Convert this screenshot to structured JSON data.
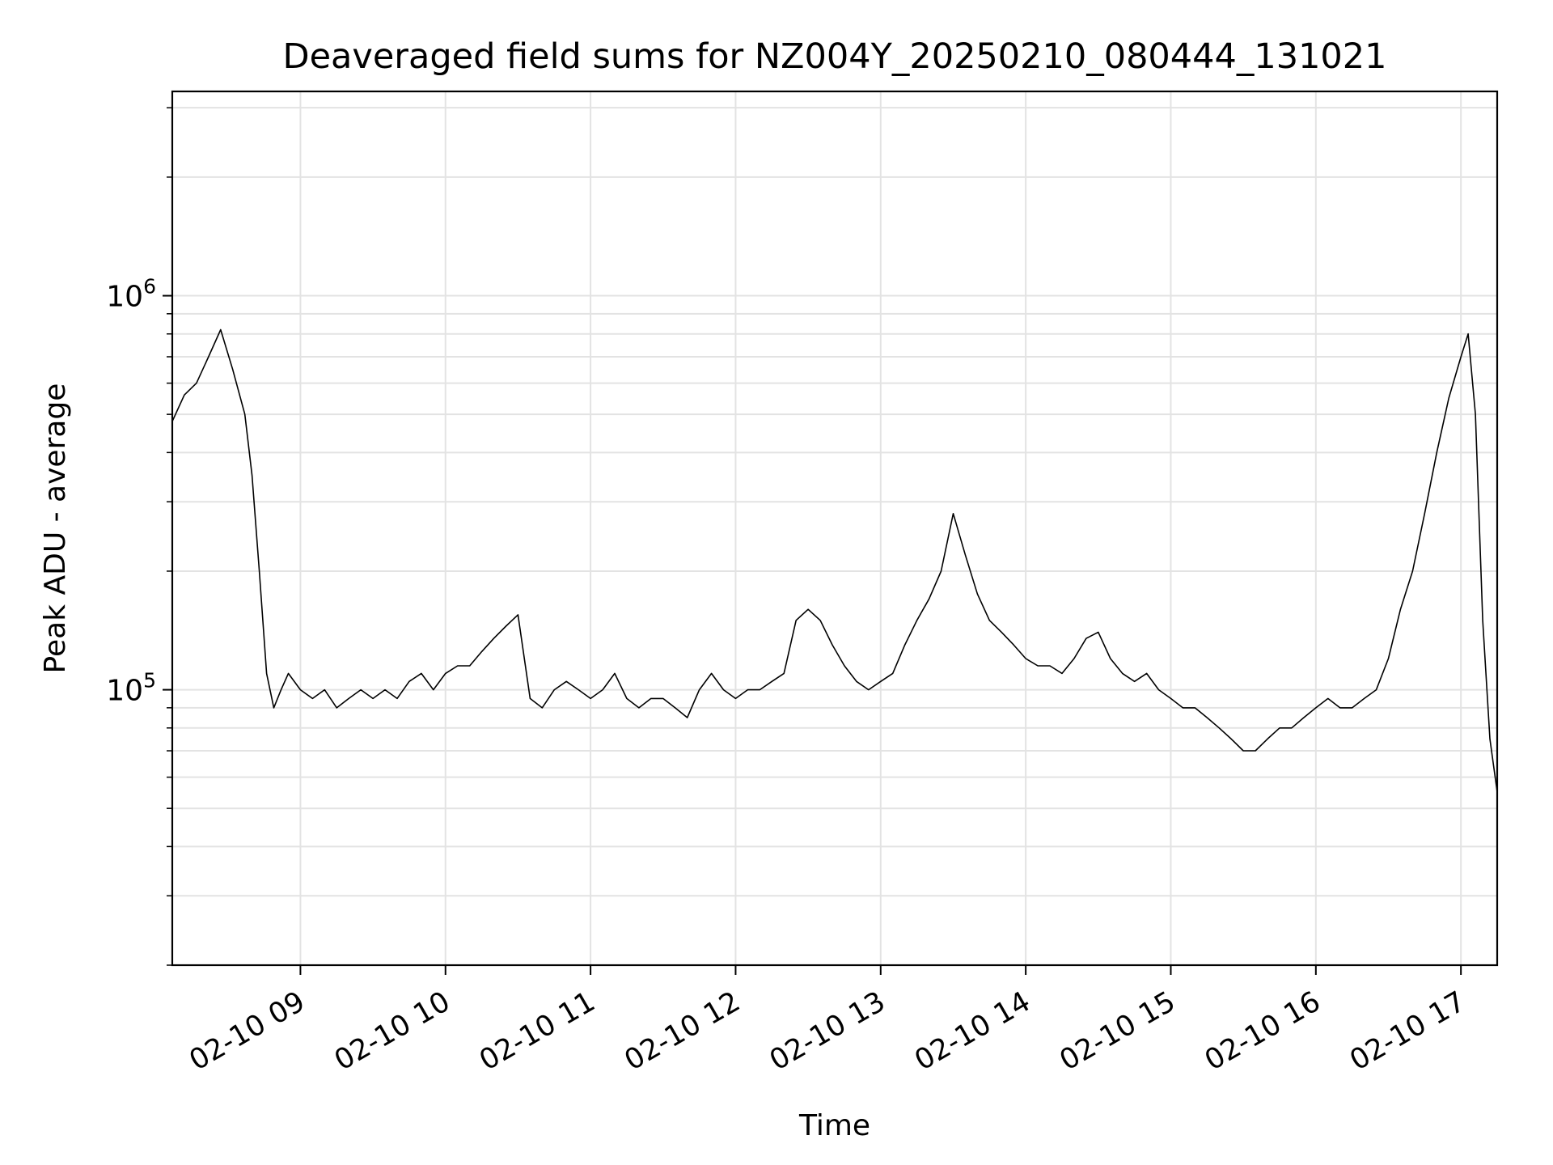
{
  "chart_data": {
    "type": "line",
    "title": "Deaveraged field sums for NZ004Y_20250210_080444_131021",
    "xlabel": "Time",
    "ylabel": "Peak ADU - average",
    "xscale": "time",
    "yscale": "log",
    "xlim": [
      "2025-02-10 08:07",
      "2025-02-10 17:15"
    ],
    "ylim": [
      20000,
      3300000
    ],
    "grid": true,
    "legend": "none",
    "line_color": "#000000",
    "x_ticks": [
      {
        "value": "2025-02-10 09:00",
        "label": "02-10 09"
      },
      {
        "value": "2025-02-10 10:00",
        "label": "02-10 10"
      },
      {
        "value": "2025-02-10 11:00",
        "label": "02-10 11"
      },
      {
        "value": "2025-02-10 12:00",
        "label": "02-10 12"
      },
      {
        "value": "2025-02-10 13:00",
        "label": "02-10 13"
      },
      {
        "value": "2025-02-10 14:00",
        "label": "02-10 14"
      },
      {
        "value": "2025-02-10 15:00",
        "label": "02-10 15"
      },
      {
        "value": "2025-02-10 16:00",
        "label": "02-10 16"
      },
      {
        "value": "2025-02-10 17:00",
        "label": "02-10 17"
      }
    ],
    "y_major_ticks": [
      {
        "value": 100000,
        "base": "10",
        "exp": "5"
      },
      {
        "value": 1000000,
        "base": "10",
        "exp": "6"
      }
    ],
    "series": [
      {
        "x": [
          "2025-02-10 08:07",
          "2025-02-10 08:12",
          "2025-02-10 08:17",
          "2025-02-10 08:22",
          "2025-02-10 08:27",
          "2025-02-10 08:32",
          "2025-02-10 08:37",
          "2025-02-10 08:40",
          "2025-02-10 08:43",
          "2025-02-10 08:46",
          "2025-02-10 08:49",
          "2025-02-10 08:52",
          "2025-02-10 08:55",
          "2025-02-10 09:00",
          "2025-02-10 09:05",
          "2025-02-10 09:10",
          "2025-02-10 09:15",
          "2025-02-10 09:20",
          "2025-02-10 09:25",
          "2025-02-10 09:30",
          "2025-02-10 09:35",
          "2025-02-10 09:40",
          "2025-02-10 09:45",
          "2025-02-10 09:50",
          "2025-02-10 09:55",
          "2025-02-10 10:00",
          "2025-02-10 10:05",
          "2025-02-10 10:10",
          "2025-02-10 10:15",
          "2025-02-10 10:20",
          "2025-02-10 10:25",
          "2025-02-10 10:30",
          "2025-02-10 10:35",
          "2025-02-10 10:40",
          "2025-02-10 10:45",
          "2025-02-10 10:50",
          "2025-02-10 10:55",
          "2025-02-10 11:00",
          "2025-02-10 11:05",
          "2025-02-10 11:10",
          "2025-02-10 11:15",
          "2025-02-10 11:20",
          "2025-02-10 11:25",
          "2025-02-10 11:30",
          "2025-02-10 11:35",
          "2025-02-10 11:40",
          "2025-02-10 11:45",
          "2025-02-10 11:50",
          "2025-02-10 11:55",
          "2025-02-10 12:00",
          "2025-02-10 12:05",
          "2025-02-10 12:10",
          "2025-02-10 12:15",
          "2025-02-10 12:20",
          "2025-02-10 12:25",
          "2025-02-10 12:30",
          "2025-02-10 12:35",
          "2025-02-10 12:40",
          "2025-02-10 12:45",
          "2025-02-10 12:50",
          "2025-02-10 12:55",
          "2025-02-10 13:00",
          "2025-02-10 13:05",
          "2025-02-10 13:10",
          "2025-02-10 13:15",
          "2025-02-10 13:20",
          "2025-02-10 13:25",
          "2025-02-10 13:30",
          "2025-02-10 13:35",
          "2025-02-10 13:40",
          "2025-02-10 13:45",
          "2025-02-10 13:50",
          "2025-02-10 13:55",
          "2025-02-10 14:00",
          "2025-02-10 14:05",
          "2025-02-10 14:10",
          "2025-02-10 14:15",
          "2025-02-10 14:20",
          "2025-02-10 14:25",
          "2025-02-10 14:30",
          "2025-02-10 14:35",
          "2025-02-10 14:40",
          "2025-02-10 14:45",
          "2025-02-10 14:50",
          "2025-02-10 14:55",
          "2025-02-10 15:00",
          "2025-02-10 15:05",
          "2025-02-10 15:10",
          "2025-02-10 15:15",
          "2025-02-10 15:20",
          "2025-02-10 15:25",
          "2025-02-10 15:30",
          "2025-02-10 15:35",
          "2025-02-10 15:40",
          "2025-02-10 15:45",
          "2025-02-10 15:50",
          "2025-02-10 15:55",
          "2025-02-10 16:00",
          "2025-02-10 16:05",
          "2025-02-10 16:10",
          "2025-02-10 16:15",
          "2025-02-10 16:20",
          "2025-02-10 16:25",
          "2025-02-10 16:30",
          "2025-02-10 16:35",
          "2025-02-10 16:40",
          "2025-02-10 16:45",
          "2025-02-10 16:50",
          "2025-02-10 16:55",
          "2025-02-10 17:00",
          "2025-02-10 17:03",
          "2025-02-10 17:06",
          "2025-02-10 17:09",
          "2025-02-10 17:12",
          "2025-02-10 17:15"
        ],
        "y": [
          480000,
          560000,
          600000,
          700000,
          820000,
          650000,
          500000,
          350000,
          200000,
          110000,
          90000,
          100000,
          110000,
          100000,
          95000,
          100000,
          90000,
          95000,
          100000,
          95000,
          100000,
          95000,
          105000,
          110000,
          100000,
          110000,
          115000,
          115000,
          125000,
          135000,
          145000,
          155000,
          95000,
          90000,
          100000,
          105000,
          100000,
          95000,
          100000,
          110000,
          95000,
          90000,
          95000,
          95000,
          90000,
          85000,
          100000,
          110000,
          100000,
          95000,
          100000,
          100000,
          105000,
          110000,
          150000,
          160000,
          150000,
          130000,
          115000,
          105000,
          100000,
          105000,
          110000,
          130000,
          150000,
          170000,
          200000,
          280000,
          220000,
          175000,
          150000,
          140000,
          130000,
          120000,
          115000,
          115000,
          110000,
          120000,
          135000,
          140000,
          120000,
          110000,
          105000,
          110000,
          100000,
          95000,
          90000,
          90000,
          85000,
          80000,
          75000,
          70000,
          70000,
          75000,
          80000,
          80000,
          85000,
          90000,
          95000,
          90000,
          90000,
          95000,
          100000,
          120000,
          160000,
          200000,
          280000,
          400000,
          550000,
          700000,
          800000,
          500000,
          150000,
          75000,
          55000
        ]
      }
    ]
  }
}
